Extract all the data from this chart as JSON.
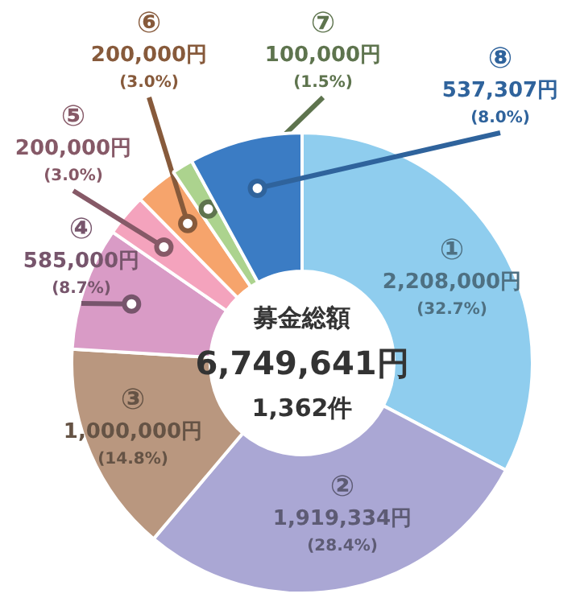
{
  "chart_data": {
    "type": "donut",
    "categories": [
      "①",
      "②",
      "③",
      "④",
      "⑤",
      "⑥",
      "⑦",
      "⑧"
    ],
    "values": [
      2208000,
      1919334,
      1000000,
      585000,
      200000,
      200000,
      100000,
      537307
    ],
    "value_labels": [
      "2,208,000円\n(32.7%)",
      "1,919,334円\n(28.4%)",
      "1,000,000円\n(14.8%)",
      "585,000円\n(8.7%)",
      "200,000円\n(3.0%)",
      "200,000円\n(3.0%)",
      "100,000円\n(1.5%)",
      "537,307円\n(8.0%)"
    ],
    "colors": [
      "#8fcdee",
      "#aaa7d4",
      "#b9977f",
      "#d99bc6",
      "#f4a3bd",
      "#f6a46c",
      "#acd38e",
      "#3b7cc4"
    ],
    "annotations": [
      "募金総額",
      "6,749,641円",
      "1,362件"
    ]
  }
}
